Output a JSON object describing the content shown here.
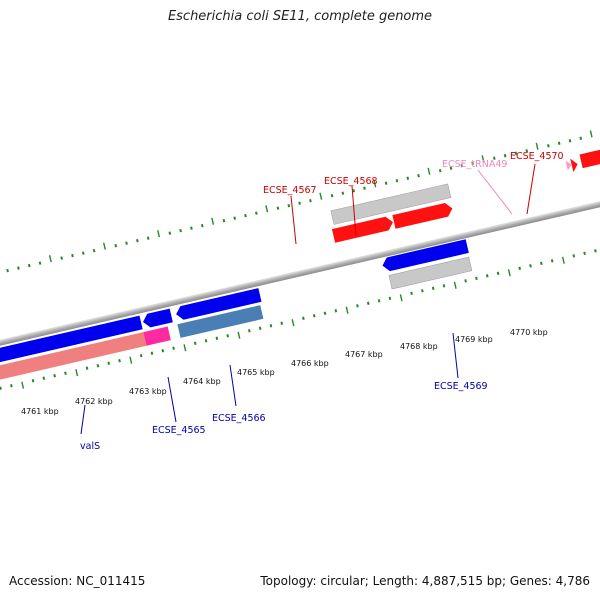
{
  "title": "Escherichia coli SE11, complete genome",
  "footer": {
    "accession": "Accession: NC_011415",
    "summary": "Topology: circular; Length: 4,887,515 bp; Genes: 4,786"
  },
  "scale_labels": [
    "4761 kbp",
    "4762 kbp",
    "4763 kbp",
    "4764 kbp",
    "4765 kbp",
    "4766 kbp",
    "4767 kbp",
    "4768 kbp",
    "4769 kbp",
    "4770 kbp"
  ],
  "gene_labels": {
    "valS": "valS",
    "ECSE_4565": "ECSE_4565",
    "ECSE_4566": "ECSE_4566",
    "ECSE_4567": "ECSE_4567",
    "ECSE_4568": "ECSE_4568",
    "ECSE_4569": "ECSE_4569",
    "ECSE_tRNA49": "ECSE_tRNA49",
    "ECSE_4570": "ECSE_4570"
  },
  "colors": {
    "forward_gene": "#ff0000",
    "reverse_gene": "#0000ee",
    "trna": "#ff99cc",
    "rrna_like": "#ff33aa",
    "feature_gray": "#c0c0c0",
    "tick": "#228b22",
    "label_red": "#cc0000",
    "label_blue": "#0000aa",
    "label_pink": "#ee88bb"
  }
}
